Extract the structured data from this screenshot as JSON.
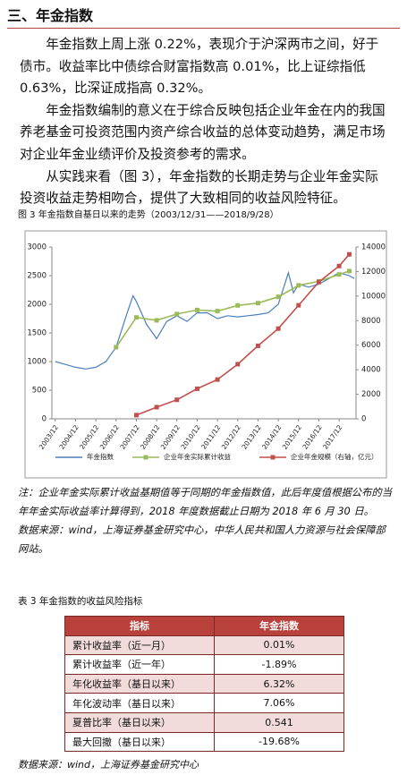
{
  "heading": "三、年金指数",
  "paragraphs": [
    "年金指数上周上涨 0.22%，表现介于沪深两市之间，好于债市。收益率比中债综合财富指数高 0.01%，比上证综指低 0.63%，比深证成指高 0.32%。",
    "年金指数编制的意义在于综合反映包括企业年金在内的我国养老基金可投资范围内资产综合收益的总体变动趋势，满足市场对企业年金业绩评价及投资参考的需求。",
    "从实践来看（图 3），年金指数的长期走势与企业年金实际投资收益走势相吻合，提供了大致相同的收益风险特征。"
  ],
  "chart_data": {
    "type": "line",
    "title": "图 3  年金指数自基日以来的走势（2003/12/31——2018/9/28）",
    "xlim": [
      "2003/10",
      "2018/10"
    ],
    "xticks": [
      "2003/12",
      "2004/12",
      "2005/12",
      "2006/12",
      "2007/12",
      "2008/12",
      "2009/12",
      "2010/12",
      "2011/12",
      "2012/12",
      "2013/12",
      "2014/12",
      "2015/12",
      "2016/12",
      "2017/12"
    ],
    "ylim": [
      0,
      3000
    ],
    "yticks": [
      0,
      500,
      1000,
      1500,
      2000,
      2500,
      3000
    ],
    "y2lim": [
      0,
      14000
    ],
    "y2ticks": [
      0,
      2000,
      4000,
      6000,
      8000,
      10000,
      12000,
      14000
    ],
    "grid": false,
    "legend": "bottom",
    "series": [
      {
        "name": "年金指数",
        "color": "#4a7ebb",
        "marker": false,
        "x": [
          "2003/12",
          "2004/06",
          "2004/12",
          "2005/06",
          "2005/12",
          "2006/06",
          "2006/12",
          "2007/06",
          "2007/10",
          "2007/12",
          "2008/06",
          "2008/12",
          "2009/06",
          "2009/12",
          "2010/06",
          "2010/12",
          "2011/06",
          "2011/12",
          "2012/06",
          "2012/12",
          "2013/06",
          "2013/12",
          "2014/06",
          "2014/12",
          "2015/06",
          "2015/09",
          "2015/12",
          "2016/06",
          "2016/12",
          "2017/06",
          "2017/12",
          "2018/06",
          "2018/09"
        ],
        "values": [
          1000,
          950,
          900,
          870,
          900,
          1000,
          1250,
          1800,
          2150,
          2050,
          1650,
          1400,
          1700,
          1800,
          1700,
          1850,
          1850,
          1750,
          1800,
          1780,
          1800,
          1820,
          1850,
          2000,
          2550,
          2200,
          2350,
          2300,
          2350,
          2450,
          2550,
          2500,
          2450
        ]
      },
      {
        "name": "企业年金实际累计收益",
        "color": "#9bbb59",
        "marker": true,
        "x": [
          "2006/12",
          "2007/12",
          "2008/12",
          "2009/12",
          "2010/12",
          "2011/12",
          "2012/12",
          "2013/12",
          "2014/12",
          "2015/12",
          "2016/12",
          "2017/12",
          "2018/06"
        ],
        "values": [
          1250,
          1770,
          1720,
          1830,
          1900,
          1880,
          1980,
          2020,
          2130,
          2330,
          2400,
          2520,
          2580
        ]
      },
      {
        "name": "企业年金规模（右轴，亿元）",
        "color": "#c0504d",
        "marker": true,
        "axis": "y2",
        "x": [
          "2007/12",
          "2008/12",
          "2009/12",
          "2010/12",
          "2011/12",
          "2012/12",
          "2013/12",
          "2014/12",
          "2015/12",
          "2016/12",
          "2017/12",
          "2018/06"
        ],
        "values": [
          300,
          950,
          1550,
          2450,
          3200,
          4450,
          5950,
          7350,
          9250,
          11150,
          12450,
          13400
        ]
      }
    ]
  },
  "notes": [
    "注：企业年金实际累计收益基期值等于同期的年金指数值，此后年度值根据公布的当年年金实际收益率计算得到，2018 年度数据截止日期为 2018 年 6 月 30 日。",
    "数据来源：wind，上海证券基金研究中心，中华人民共和国人力资源与社会保障部网站。"
  ],
  "table": {
    "caption": "表 3  年金指数的收益风险指标",
    "header": [
      "指标",
      "年金指数"
    ],
    "rows": [
      [
        "累计收益率（近一月）",
        "0.01%"
      ],
      [
        "累计收益率（近一年）",
        "-1.89%"
      ],
      [
        "年化收益率（基日以来）",
        "6.32%"
      ],
      [
        "年化波动率（基日以来）",
        "7.06%"
      ],
      [
        "夏普比率（基日以来）",
        "0.541"
      ],
      [
        "最大回撤（基日以来）",
        "-19.68%"
      ]
    ]
  },
  "source": "数据来源：wind，上海证券基金研究中心"
}
